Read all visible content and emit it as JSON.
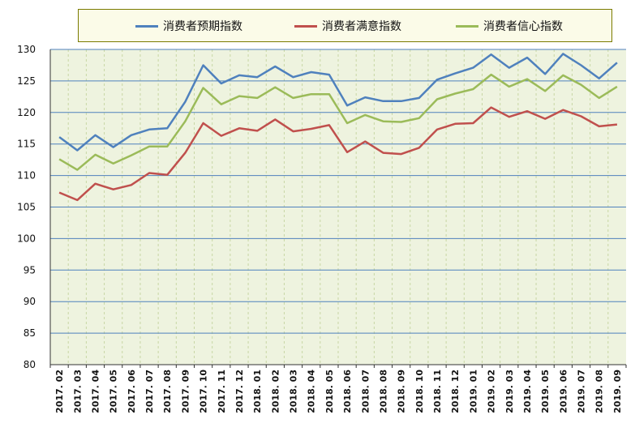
{
  "chart_data": {
    "type": "line",
    "title": "",
    "xlabel": "",
    "ylabel": "",
    "ylim": [
      80,
      130
    ],
    "yticks": [
      80,
      85,
      90,
      95,
      100,
      105,
      110,
      115,
      120,
      125,
      130
    ],
    "grid": true,
    "legend_position": "top",
    "plot_background": "#eef3df",
    "categories": [
      "2017. 02",
      "2017. 03",
      "2017. 04",
      "2017. 05",
      "2017. 06",
      "2017. 07",
      "2017. 08",
      "2017. 09",
      "2017. 10",
      "2017. 11",
      "2017. 12",
      "2018. 01",
      "2018. 02",
      "2018. 03",
      "2018. 04",
      "2018. 05",
      "2018. 06",
      "2018. 07",
      "2018. 08",
      "2018. 09",
      "2018. 10",
      "2018. 11",
      "2018. 12",
      "2019. 01",
      "2019. 02",
      "2019. 03",
      "2019. 04",
      "2019. 05",
      "2019. 06",
      "2019. 07",
      "2019. 08",
      "2019. 09"
    ],
    "series": [
      {
        "name": "消费者预期指数",
        "color": "#4f81bd",
        "values": [
          116.1,
          114.0,
          116.4,
          114.5,
          116.4,
          117.3,
          117.5,
          121.7,
          127.5,
          124.6,
          125.9,
          125.6,
          127.3,
          125.6,
          126.4,
          126.0,
          121.1,
          122.4,
          121.8,
          121.8,
          122.3,
          125.2,
          126.2,
          127.1,
          129.2,
          127.1,
          128.7,
          126.1,
          129.3,
          127.5,
          125.4,
          127.9
        ]
      },
      {
        "name": "消费者满意指数",
        "color": "#c0504d",
        "values": [
          107.3,
          106.1,
          108.7,
          107.8,
          108.5,
          110.4,
          110.1,
          113.6,
          118.3,
          116.3,
          117.5,
          117.1,
          118.9,
          117.0,
          117.4,
          118.0,
          113.7,
          115.4,
          113.6,
          113.4,
          114.4,
          117.3,
          118.2,
          118.3,
          120.8,
          119.3,
          120.2,
          119.0,
          120.4,
          119.4,
          117.8,
          118.1
        ]
      },
      {
        "name": "消费者信心指数",
        "color": "#9bbb59",
        "values": [
          112.6,
          110.9,
          113.3,
          111.9,
          113.2,
          114.6,
          114.6,
          118.6,
          123.9,
          121.3,
          122.6,
          122.3,
          124.0,
          122.3,
          122.9,
          122.9,
          118.3,
          119.6,
          118.6,
          118.5,
          119.1,
          122.1,
          123.0,
          123.7,
          126.0,
          124.1,
          125.3,
          123.4,
          125.9,
          124.4,
          122.3,
          124.1
        ]
      }
    ]
  }
}
